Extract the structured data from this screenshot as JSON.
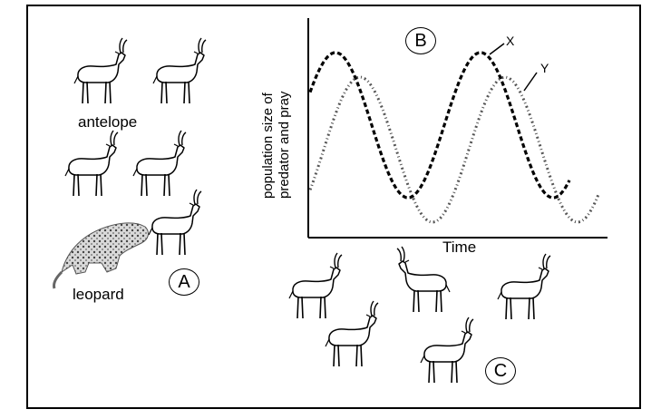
{
  "labels": {
    "antelope": "antelope",
    "leopard": "leopard",
    "region_a": "A",
    "region_b": "B",
    "region_c": "C"
  },
  "chart_data": {
    "type": "line",
    "xlabel": "Time",
    "ylabel_line1": "population size of",
    "ylabel_line2": "predator and pray",
    "series": [
      {
        "name": "X",
        "style": "dashed",
        "color": "#000000"
      },
      {
        "name": "Y",
        "style": "dash-dot",
        "color": "#555555"
      }
    ]
  },
  "icons": {
    "antelope": "antelope-icon",
    "leopard": "leopard-icon"
  }
}
